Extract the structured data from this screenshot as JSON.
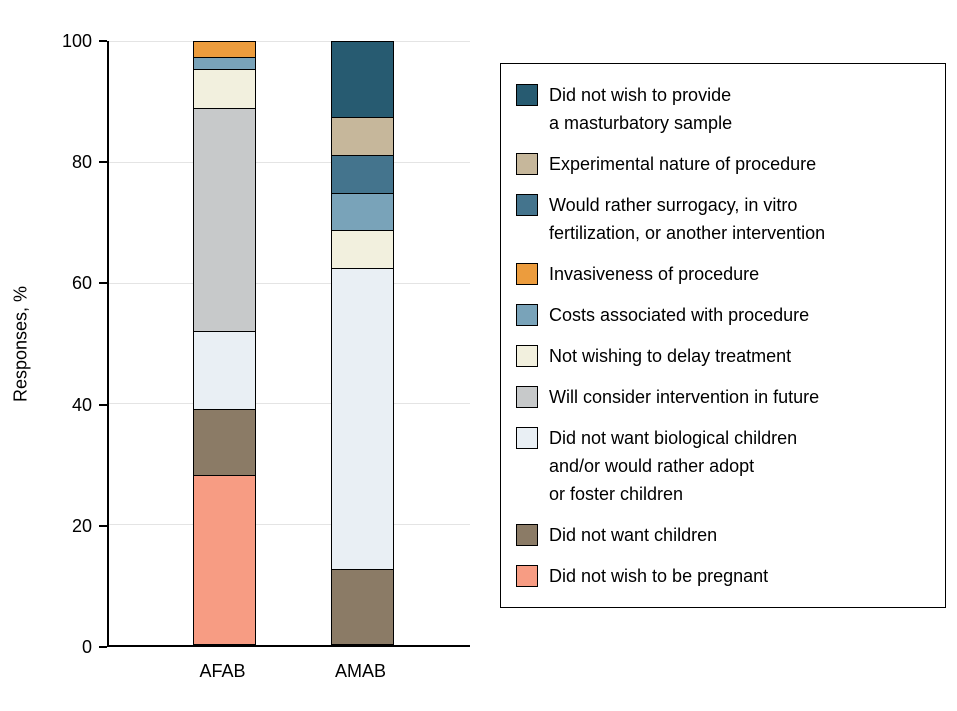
{
  "chart_data": {
    "type": "bar",
    "stacked": true,
    "title": "",
    "xlabel": "",
    "ylabel": "Responses, %",
    "ylim": [
      0,
      100
    ],
    "yticks": [
      0,
      20,
      40,
      60,
      80,
      100
    ],
    "grid": true,
    "legend_position": "right",
    "categories": [
      "AFAB",
      "AMAB"
    ],
    "series": [
      {
        "name": "Did not wish to provide\na masturbatory sample",
        "color": "#275b71",
        "values": [
          0,
          12.5
        ]
      },
      {
        "name": "Experimental nature of procedure",
        "color": "#c6b79b",
        "values": [
          0,
          6.25
        ]
      },
      {
        "name": "Would rather surrogacy, in vitro\nfertilization, or another intervention",
        "color": "#44748d",
        "values": [
          0,
          6.25
        ]
      },
      {
        "name": "Invasiveness of procedure",
        "color": "#ec9c3d",
        "values": [
          2.5,
          0
        ]
      },
      {
        "name": "Costs associated with procedure",
        "color": "#79a3b9",
        "values": [
          2,
          6.25
        ]
      },
      {
        "name": "Not wishing to delay treatment",
        "color": "#f2f0de",
        "values": [
          6.5,
          6.25
        ]
      },
      {
        "name": "Will consider intervention in future",
        "color": "#c7c9ca",
        "values": [
          37,
          0
        ]
      },
      {
        "name": "Did not want biological children\nand/or would rather adopt\nor foster children",
        "color": "#e9eff4",
        "values": [
          13,
          50
        ]
      },
      {
        "name": "Did not want children",
        "color": "#8b7b66",
        "values": [
          11,
          12.5
        ]
      },
      {
        "name": "Did not wish to be pregnant",
        "color": "#f79c83",
        "values": [
          28,
          0
        ]
      }
    ]
  }
}
